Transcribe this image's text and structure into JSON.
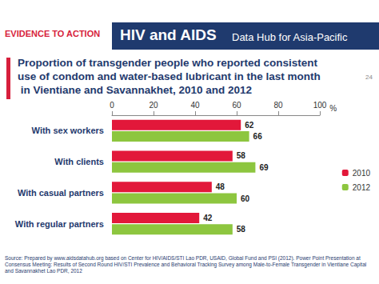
{
  "chart_data": {
    "type": "bar",
    "orientation": "horizontal",
    "title": "Proportion of transgender people who reported consistent use of condom and water-based lubricant in the last month in Vientiane and Savannakhet, 2010 and 2012",
    "x_label": "%",
    "categories": [
      "With sex workers",
      "With clients",
      "With casual partners",
      "With regular partners"
    ],
    "series": [
      {
        "name": "2010",
        "color": "#e2183a",
        "values": [
          62,
          58,
          48,
          42
        ]
      },
      {
        "name": "2012",
        "color": "#8dc63f",
        "values": [
          66,
          69,
          60,
          58
        ]
      }
    ],
    "xlim": [
      0,
      100
    ],
    "xticks": [
      0,
      20,
      40,
      60,
      80,
      100
    ],
    "grid": false,
    "legend": "right",
    "data_labels": true,
    "annotations": {
      "logo": "EVIDENCE TO ACTION",
      "header": "HIV and AIDS",
      "header_sub": "Data Hub for Asia-Pacific",
      "source": "Source: Prepared by www.aidsdatahub.org based on Center for HIV/AIDS/STI Lao PDR, USAID, Global Fund and PSI (2012). Power Point Presentation at Consensus Meeting: Results of Second Round HIV/STI Prevalence and Behavioral Tracking Survey among Male-to-Female Transgender in Vientiane Capital and Savannakhet Lao PDR, 2012",
      "page": "24"
    }
  }
}
